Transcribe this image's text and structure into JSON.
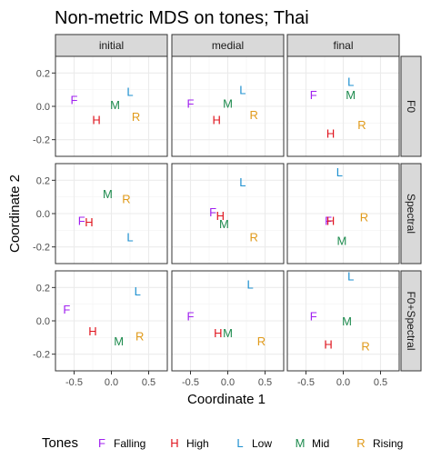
{
  "chart_data": {
    "type": "scatter",
    "title": "Non-metric MDS on tones; Thai",
    "xlabel": "Coordinate 1",
    "ylabel": "Coordinate 2",
    "xlim": [
      -0.75,
      0.75
    ],
    "ylim": [
      -0.3,
      0.3
    ],
    "x_ticks": [
      -0.5,
      0.0,
      0.5
    ],
    "x_tick_labels": [
      "-0.5",
      "0.0",
      "0.5"
    ],
    "y_ticks": [
      -0.2,
      0.0,
      0.2
    ],
    "y_tick_labels": [
      "-0.2",
      "0.0",
      "0.2"
    ],
    "columns": [
      "initial",
      "medial",
      "final"
    ],
    "rows": [
      "F0",
      "Spectral",
      "F0+Spectral"
    ],
    "grid": true,
    "legend_position": "bottom",
    "legend_title": "Tones",
    "tones": [
      {
        "key": "F",
        "name": "Falling",
        "color": "#A020F0"
      },
      {
        "key": "H",
        "name": "High",
        "color": "#E0141E"
      },
      {
        "key": "L",
        "name": "Low",
        "color": "#1E90D0"
      },
      {
        "key": "M",
        "name": "Mid",
        "color": "#1E8B4E"
      },
      {
        "key": "R",
        "name": "Rising",
        "color": "#E09A1A"
      }
    ],
    "panels": [
      {
        "row": "F0",
        "col": "initial",
        "points": {
          "F": [
            -0.5,
            0.04
          ],
          "H": [
            -0.2,
            -0.08
          ],
          "L": [
            0.25,
            0.09
          ],
          "M": [
            0.05,
            0.01
          ],
          "R": [
            0.33,
            -0.06
          ]
        }
      },
      {
        "row": "F0",
        "col": "medial",
        "points": {
          "F": [
            -0.5,
            0.02
          ],
          "H": [
            -0.15,
            -0.08
          ],
          "L": [
            0.2,
            0.1
          ],
          "M": [
            0.0,
            0.02
          ],
          "R": [
            0.35,
            -0.05
          ]
        }
      },
      {
        "row": "F0",
        "col": "final",
        "points": {
          "F": [
            -0.4,
            0.07
          ],
          "H": [
            -0.17,
            -0.16
          ],
          "L": [
            0.1,
            0.15
          ],
          "M": [
            0.1,
            0.07
          ],
          "R": [
            0.25,
            -0.11
          ]
        }
      },
      {
        "row": "Spectral",
        "col": "initial",
        "points": {
          "F": [
            -0.4,
            -0.04
          ],
          "H": [
            -0.3,
            -0.05
          ],
          "L": [
            0.25,
            -0.14
          ],
          "M": [
            -0.05,
            0.12
          ],
          "R": [
            0.2,
            0.09
          ]
        }
      },
      {
        "row": "Spectral",
        "col": "medial",
        "points": {
          "F": [
            -0.2,
            0.01
          ],
          "H": [
            -0.1,
            -0.01
          ],
          "L": [
            0.2,
            0.19
          ],
          "M": [
            -0.05,
            -0.06
          ],
          "R": [
            0.35,
            -0.14
          ]
        }
      },
      {
        "row": "Spectral",
        "col": "final",
        "points": {
          "F": [
            -0.2,
            -0.04
          ],
          "H": [
            -0.17,
            -0.04
          ],
          "L": [
            -0.05,
            0.25
          ],
          "M": [
            -0.02,
            -0.16
          ],
          "R": [
            0.28,
            -0.02
          ]
        }
      },
      {
        "row": "F0+Spectral",
        "col": "initial",
        "points": {
          "F": [
            -0.6,
            0.07
          ],
          "H": [
            -0.25,
            -0.06
          ],
          "L": [
            0.35,
            0.18
          ],
          "M": [
            0.1,
            -0.12
          ],
          "R": [
            0.38,
            -0.09
          ]
        }
      },
      {
        "row": "F0+Spectral",
        "col": "medial",
        "points": {
          "F": [
            -0.5,
            0.03
          ],
          "H": [
            -0.13,
            -0.07
          ],
          "L": [
            0.3,
            0.22
          ],
          "M": [
            0.0,
            -0.07
          ],
          "R": [
            0.45,
            -0.12
          ]
        }
      },
      {
        "row": "F0+Spectral",
        "col": "final",
        "points": {
          "F": [
            -0.4,
            0.03
          ],
          "H": [
            -0.2,
            -0.14
          ],
          "L": [
            0.1,
            0.27
          ],
          "M": [
            0.05,
            0.0
          ],
          "R": [
            0.3,
            -0.15
          ]
        }
      }
    ]
  }
}
